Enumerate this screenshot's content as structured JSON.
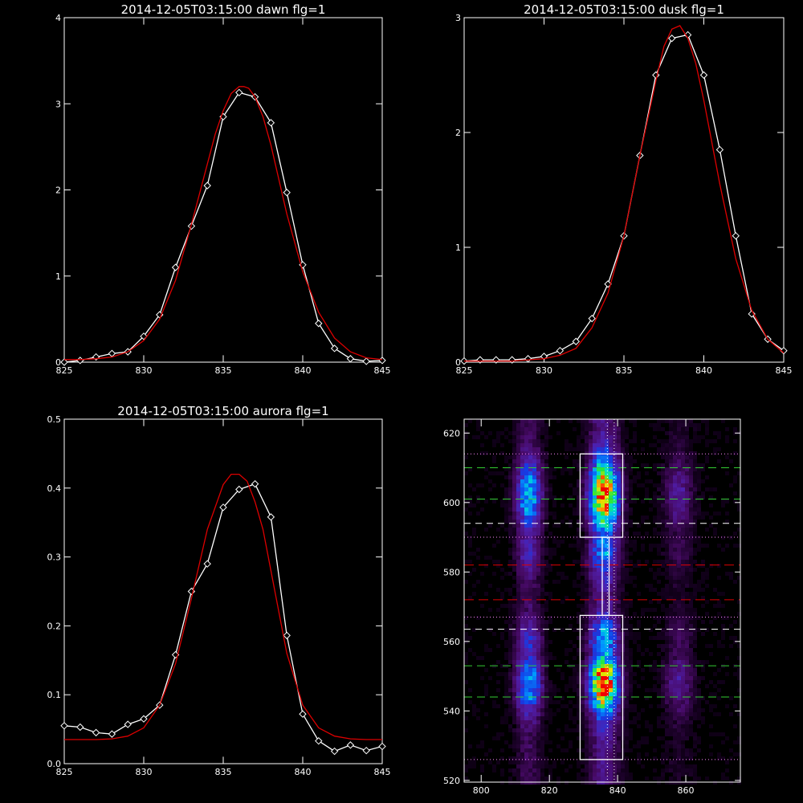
{
  "colors": {
    "background": "#000000",
    "axes": "#ffffff",
    "data_line": "#ffffff",
    "fit_line": "#dd0000",
    "green_dash": "#33cc33",
    "white_dash": "#ffffff",
    "red_dash": "#dd0000",
    "dotted": "#ff88ff"
  },
  "chart_data": [
    {
      "type": "line",
      "title": "2014-12-05T03:15:00 dawn flg=1",
      "xlim": [
        825,
        845
      ],
      "ylim": [
        0,
        4
      ],
      "xticks": [
        825,
        830,
        835,
        840,
        845
      ],
      "yticks": [
        0,
        1,
        2,
        3,
        4
      ],
      "series": [
        {
          "role": "data",
          "marker": "diamond",
          "x": [
            825,
            826,
            827,
            828,
            829,
            830,
            831,
            832,
            833,
            834,
            835,
            836,
            837,
            838,
            839,
            840,
            841,
            842,
            843,
            844,
            845
          ],
          "y": [
            0,
            0.02,
            0.06,
            0.1,
            0.12,
            0.3,
            0.55,
            1.1,
            1.58,
            2.05,
            2.85,
            3.13,
            3.08,
            2.78,
            1.97,
            1.13,
            0.45,
            0.16,
            0.04,
            0.01,
            0.02
          ]
        },
        {
          "role": "fit",
          "x": [
            825,
            826,
            827,
            828,
            829,
            830,
            831,
            832,
            833,
            834,
            834.5,
            835,
            835.5,
            836,
            836.3,
            836.6,
            837,
            837.5,
            838,
            838.5,
            839,
            840,
            841,
            842,
            843,
            844,
            845
          ],
          "y": [
            0.03,
            0.03,
            0.04,
            0.06,
            0.12,
            0.25,
            0.5,
            0.95,
            1.6,
            2.3,
            2.65,
            2.92,
            3.12,
            3.2,
            3.2,
            3.18,
            3.08,
            2.85,
            2.52,
            2.12,
            1.72,
            1.05,
            0.58,
            0.28,
            0.12,
            0.05,
            0.03
          ]
        }
      ]
    },
    {
      "type": "line",
      "title": "2014-12-05T03:15:00 dusk flg=1",
      "xlim": [
        825,
        845
      ],
      "ylim": [
        0,
        3
      ],
      "xticks": [
        825,
        830,
        835,
        840,
        845
      ],
      "yticks": [
        0,
        1,
        2,
        3
      ],
      "series": [
        {
          "role": "data",
          "marker": "diamond",
          "x": [
            825,
            826,
            827,
            828,
            829,
            830,
            831,
            832,
            833,
            834,
            835,
            836,
            837,
            838,
            839,
            840,
            841,
            842,
            843,
            844,
            845
          ],
          "y": [
            0.01,
            0.02,
            0.02,
            0.02,
            0.03,
            0.05,
            0.1,
            0.18,
            0.38,
            0.68,
            1.1,
            1.8,
            2.5,
            2.82,
            2.85,
            2.5,
            1.85,
            1.1,
            0.42,
            0.2,
            0.1
          ]
        },
        {
          "role": "fit",
          "x": [
            825,
            826,
            827,
            828,
            829,
            830,
            831,
            832,
            833,
            834,
            835,
            836,
            837,
            837.5,
            838,
            838.5,
            839,
            839.5,
            840,
            841,
            842,
            843,
            844,
            845
          ],
          "y": [
            0.01,
            0.01,
            0.01,
            0.01,
            0.02,
            0.03,
            0.06,
            0.12,
            0.3,
            0.6,
            1.1,
            1.8,
            2.45,
            2.75,
            2.9,
            2.93,
            2.82,
            2.6,
            2.28,
            1.55,
            0.9,
            0.45,
            0.2,
            0.08
          ]
        }
      ]
    },
    {
      "type": "line",
      "title": "2014-12-05T03:15:00 aurora flg=1",
      "xlim": [
        825,
        845
      ],
      "ylim": [
        0,
        0.5
      ],
      "xticks": [
        825,
        830,
        835,
        840,
        845
      ],
      "yticks": [
        0.0,
        0.1,
        0.2,
        0.3,
        0.4,
        0.5
      ],
      "ytick_labels": [
        "0.0",
        "0.1",
        "0.2",
        "0.3",
        "0.4",
        "0.5"
      ],
      "series": [
        {
          "role": "data",
          "marker": "diamond",
          "x": [
            825,
            826,
            827,
            828,
            829,
            830,
            831,
            832,
            833,
            834,
            835,
            836,
            837,
            838,
            839,
            840,
            841,
            842,
            843,
            844,
            845
          ],
          "y": [
            0.055,
            0.053,
            0.045,
            0.043,
            0.057,
            0.065,
            0.085,
            0.158,
            0.25,
            0.29,
            0.372,
            0.398,
            0.406,
            0.358,
            0.186,
            0.072,
            0.033,
            0.018,
            0.027,
            0.019,
            0.025
          ]
        },
        {
          "role": "fit",
          "x": [
            825,
            826,
            827,
            828,
            829,
            830,
            831,
            832,
            833,
            834,
            835,
            835.5,
            836,
            836.5,
            837,
            837.5,
            838,
            838.5,
            839,
            840,
            841,
            842,
            843,
            844,
            845
          ],
          "y": [
            0.035,
            0.035,
            0.035,
            0.036,
            0.04,
            0.052,
            0.085,
            0.145,
            0.24,
            0.34,
            0.405,
            0.42,
            0.42,
            0.41,
            0.38,
            0.34,
            0.28,
            0.22,
            0.16,
            0.085,
            0.052,
            0.04,
            0.036,
            0.035,
            0.035
          ]
        }
      ]
    },
    {
      "type": "heatmap",
      "xlim": [
        795,
        876
      ],
      "ylim": [
        519.5,
        624
      ],
      "xticks": [
        800,
        820,
        840,
        860
      ],
      "yticks": [
        520,
        540,
        560,
        580,
        600,
        620
      ],
      "columns": [
        {
          "x": 814,
          "sigma": 2.6,
          "weight": 0.55
        },
        {
          "x": 836,
          "sigma": 3.0,
          "weight": 1.0
        },
        {
          "x": 858,
          "sigma": 3.0,
          "weight": 0.22
        }
      ],
      "bands": [
        {
          "y": 602,
          "sigma": 7,
          "weight": 1.0
        },
        {
          "y": 548,
          "sigma": 6,
          "weight": 1.0
        },
        {
          "y": 586,
          "sigma": 5,
          "weight": 0.35
        },
        {
          "y": 560,
          "sigma": 5,
          "weight": 0.45
        }
      ],
      "horizontal_lines": [
        {
          "y": 610,
          "style": "green-dash"
        },
        {
          "y": 601,
          "style": "green-dash"
        },
        {
          "y": 594,
          "style": "white-dash"
        },
        {
          "y": 582,
          "style": "red-dash"
        },
        {
          "y": 572,
          "style": "red-dash"
        },
        {
          "y": 563.5,
          "style": "white-dash"
        },
        {
          "y": 553,
          "style": "green-dash"
        },
        {
          "y": 544,
          "style": "green-dash"
        },
        {
          "y": 614,
          "style": "dotted"
        },
        {
          "y": 590,
          "style": "dotted"
        },
        {
          "y": 567,
          "style": "dotted"
        },
        {
          "y": 526,
          "style": "dotted"
        }
      ],
      "vertical_lines": [
        {
          "x": 837,
          "style": "dotted"
        },
        {
          "x": 839,
          "style": "dotted"
        }
      ],
      "boxes": [
        {
          "x0": 829,
          "x1": 841.5,
          "y0": 590,
          "y1": 614
        },
        {
          "x0": 829,
          "x1": 841.5,
          "y0": 526,
          "y1": 567.5
        }
      ],
      "connector_x": [
        835.5,
        837.5
      ],
      "connector_y": [
        567.5,
        590
      ]
    }
  ]
}
